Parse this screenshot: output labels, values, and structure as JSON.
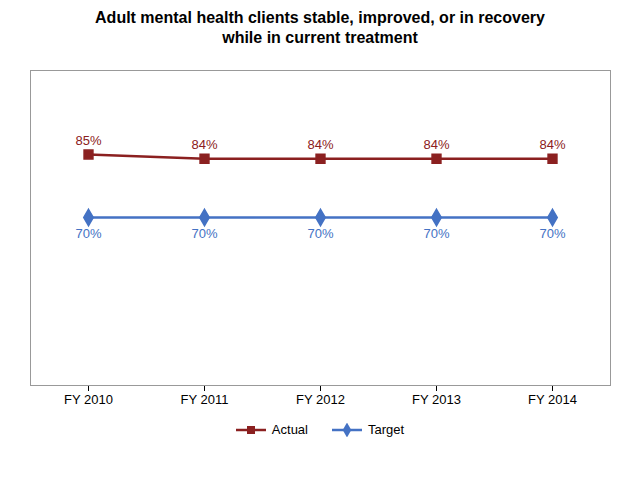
{
  "chart_data": {
    "type": "line",
    "title": "Adult mental health clients stable, improved, or in recovery\nwhile in current treatment",
    "categories": [
      "FY 2010",
      "FY 2011",
      "FY 2012",
      "FY 2013",
      "FY 2014"
    ],
    "series": [
      {
        "name": "Actual",
        "color": "#8B2020",
        "marker": "square",
        "values": [
          85,
          84,
          84,
          84,
          84
        ],
        "value_labels": [
          "85%",
          "84%",
          "84%",
          "84%",
          "84%"
        ]
      },
      {
        "name": "Target",
        "color": "#4472C4",
        "marker": "diamond",
        "values": [
          70,
          70,
          70,
          70,
          70
        ],
        "value_labels": [
          "70%",
          "70%",
          "70%",
          "70%",
          "70%"
        ]
      }
    ],
    "ylim": [
      30,
      105
    ],
    "grid": false,
    "legend": "bottom",
    "data_labels": true,
    "tick_labels": "x"
  }
}
